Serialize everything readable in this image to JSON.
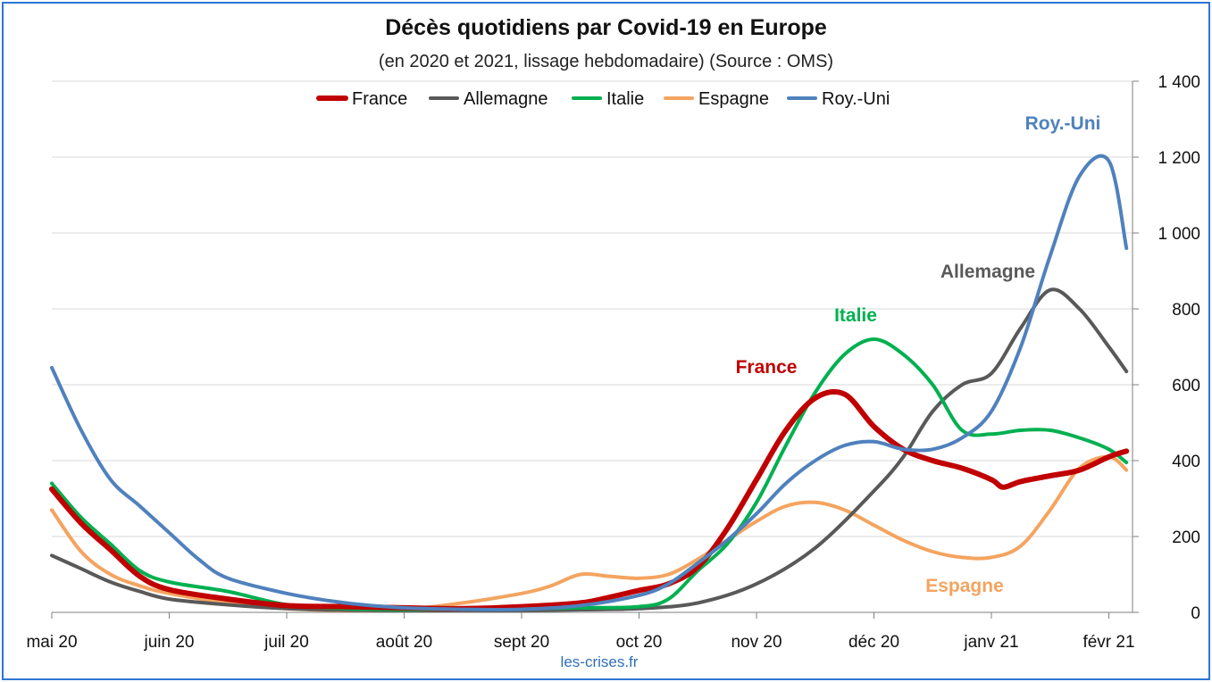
{
  "chart_data": {
    "type": "line",
    "title": "Décès quotidiens par Covid-19 en Europe",
    "subtitle": "(en 2020 et 2021, lissage hebdomadaire) (Source : OMS)",
    "source": "les-crises.fr",
    "x_ticks": [
      "mai 20",
      "juin 20",
      "juil 20",
      "août 20",
      "sept 20",
      "oct 20",
      "nov 20",
      "déc 20",
      "janv 21",
      "févr 21"
    ],
    "y_ticks": [
      "0",
      "200",
      "400",
      "600",
      "800",
      "1 000",
      "1 200",
      "1 400"
    ],
    "ylim": [
      0,
      1400
    ],
    "y_axis_side": "right",
    "grid": true,
    "legend_position": "top",
    "series": [
      {
        "name": "France",
        "color": "#c00000",
        "label": "France",
        "points": [
          [
            0,
            325
          ],
          [
            0.25,
            235
          ],
          [
            0.5,
            165
          ],
          [
            0.75,
            95
          ],
          [
            1,
            60
          ],
          [
            1.5,
            35
          ],
          [
            2,
            18
          ],
          [
            2.5,
            15
          ],
          [
            3,
            12
          ],
          [
            3.5,
            10
          ],
          [
            4,
            15
          ],
          [
            4.5,
            25
          ],
          [
            4.75,
            40
          ],
          [
            5,
            58
          ],
          [
            5.25,
            75
          ],
          [
            5.5,
            120
          ],
          [
            5.75,
            220
          ],
          [
            6,
            350
          ],
          [
            6.25,
            480
          ],
          [
            6.5,
            565
          ],
          [
            6.75,
            575
          ],
          [
            7,
            490
          ],
          [
            7.25,
            430
          ],
          [
            7.5,
            400
          ],
          [
            7.75,
            380
          ],
          [
            8,
            350
          ],
          [
            8.1,
            330
          ],
          [
            8.25,
            345
          ],
          [
            8.5,
            360
          ],
          [
            8.75,
            375
          ],
          [
            9,
            410
          ],
          [
            9.15,
            425
          ]
        ]
      },
      {
        "name": "Allemagne",
        "color": "#595959",
        "label": "Allemagne",
        "points": [
          [
            0,
            150
          ],
          [
            0.25,
            115
          ],
          [
            0.5,
            80
          ],
          [
            0.75,
            55
          ],
          [
            1,
            35
          ],
          [
            1.5,
            20
          ],
          [
            2,
            10
          ],
          [
            2.5,
            6
          ],
          [
            3,
            5
          ],
          [
            3.5,
            5
          ],
          [
            4,
            5
          ],
          [
            4.5,
            7
          ],
          [
            5,
            10
          ],
          [
            5.5,
            25
          ],
          [
            6,
            75
          ],
          [
            6.5,
            170
          ],
          [
            7,
            320
          ],
          [
            7.25,
            410
          ],
          [
            7.5,
            530
          ],
          [
            7.75,
            600
          ],
          [
            8,
            630
          ],
          [
            8.25,
            750
          ],
          [
            8.5,
            850
          ],
          [
            8.75,
            800
          ],
          [
            9,
            700
          ],
          [
            9.15,
            635
          ]
        ]
      },
      {
        "name": "Italie",
        "color": "#00b050",
        "label": "Italie",
        "points": [
          [
            0,
            340
          ],
          [
            0.25,
            250
          ],
          [
            0.5,
            180
          ],
          [
            0.75,
            110
          ],
          [
            1,
            80
          ],
          [
            1.5,
            55
          ],
          [
            2,
            20
          ],
          [
            2.5,
            10
          ],
          [
            3,
            7
          ],
          [
            3.5,
            8
          ],
          [
            4,
            10
          ],
          [
            4.5,
            12
          ],
          [
            5,
            15
          ],
          [
            5.25,
            35
          ],
          [
            5.5,
            110
          ],
          [
            5.75,
            180
          ],
          [
            6,
            290
          ],
          [
            6.25,
            440
          ],
          [
            6.5,
            580
          ],
          [
            6.75,
            680
          ],
          [
            7,
            720
          ],
          [
            7.25,
            680
          ],
          [
            7.5,
            600
          ],
          [
            7.75,
            480
          ],
          [
            8,
            470
          ],
          [
            8.25,
            480
          ],
          [
            8.5,
            480
          ],
          [
            8.75,
            460
          ],
          [
            9,
            430
          ],
          [
            9.15,
            395
          ]
        ]
      },
      {
        "name": "Espagne",
        "color": "#f4a460",
        "label": "Espagne",
        "points": [
          [
            0,
            270
          ],
          [
            0.25,
            160
          ],
          [
            0.5,
            100
          ],
          [
            0.75,
            70
          ],
          [
            1,
            50
          ],
          [
            1.5,
            25
          ],
          [
            2,
            10
          ],
          [
            2.5,
            5
          ],
          [
            3,
            8
          ],
          [
            3.5,
            25
          ],
          [
            4,
            50
          ],
          [
            4.25,
            70
          ],
          [
            4.5,
            100
          ],
          [
            4.75,
            95
          ],
          [
            5,
            90
          ],
          [
            5.25,
            100
          ],
          [
            5.5,
            140
          ],
          [
            5.75,
            190
          ],
          [
            6,
            240
          ],
          [
            6.25,
            280
          ],
          [
            6.5,
            290
          ],
          [
            6.75,
            270
          ],
          [
            7,
            230
          ],
          [
            7.25,
            190
          ],
          [
            7.5,
            160
          ],
          [
            7.75,
            145
          ],
          [
            8,
            145
          ],
          [
            8.25,
            175
          ],
          [
            8.5,
            270
          ],
          [
            8.75,
            380
          ],
          [
            9,
            410
          ],
          [
            9.15,
            375
          ]
        ]
      },
      {
        "name": "Roy.-Uni",
        "color": "#4f81bd",
        "label": "Roy.-Uni",
        "points": [
          [
            0,
            645
          ],
          [
            0.25,
            480
          ],
          [
            0.5,
            350
          ],
          [
            0.75,
            280
          ],
          [
            1,
            210
          ],
          [
            1.25,
            140
          ],
          [
            1.5,
            90
          ],
          [
            2,
            50
          ],
          [
            2.5,
            25
          ],
          [
            3,
            12
          ],
          [
            3.5,
            8
          ],
          [
            4,
            8
          ],
          [
            4.5,
            18
          ],
          [
            5,
            45
          ],
          [
            5.25,
            75
          ],
          [
            5.5,
            130
          ],
          [
            5.75,
            190
          ],
          [
            6,
            260
          ],
          [
            6.25,
            340
          ],
          [
            6.5,
            400
          ],
          [
            6.75,
            440
          ],
          [
            7,
            450
          ],
          [
            7.25,
            430
          ],
          [
            7.5,
            430
          ],
          [
            7.75,
            460
          ],
          [
            8,
            530
          ],
          [
            8.25,
            700
          ],
          [
            8.5,
            940
          ],
          [
            8.75,
            1150
          ],
          [
            9,
            1190
          ],
          [
            9.15,
            960
          ]
        ]
      }
    ]
  }
}
